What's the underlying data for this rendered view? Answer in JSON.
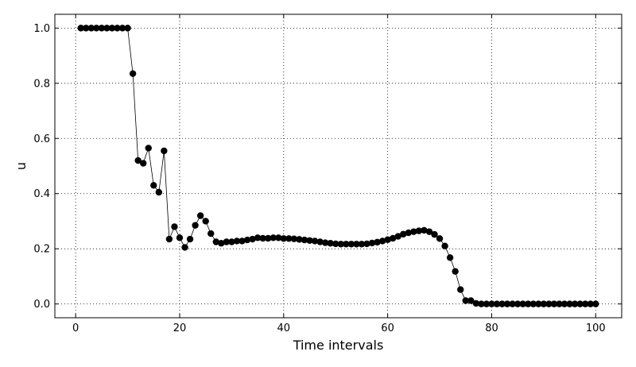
{
  "chart_data": {
    "type": "line",
    "title": "",
    "xlabel": "Time intervals",
    "ylabel": "u",
    "xlim": [
      -4,
      105
    ],
    "ylim": [
      -0.05,
      1.05
    ],
    "xticks": [
      0,
      20,
      40,
      60,
      80,
      100
    ],
    "yticks": [
      0.0,
      0.2,
      0.4,
      0.6,
      0.8,
      1.0
    ],
    "xtick_labels": [
      "0",
      "20",
      "40",
      "60",
      "80",
      "100"
    ],
    "ytick_labels": [
      "0.0",
      "0.2",
      "0.4",
      "0.6",
      "0.8",
      "1.0"
    ],
    "grid": true,
    "marker": "circle",
    "color": "#000000",
    "series": [
      {
        "x": [
          1,
          2,
          3,
          4,
          5,
          6,
          7,
          8,
          9,
          10,
          11,
          12,
          13,
          14,
          15,
          16,
          17,
          18,
          19,
          20,
          21,
          22,
          23,
          24,
          25,
          26,
          27,
          28,
          29,
          30,
          31,
          32,
          33,
          34,
          35,
          36,
          37,
          38,
          39,
          40,
          41,
          42,
          43,
          44,
          45,
          46,
          47,
          48,
          49,
          50,
          51,
          52,
          53,
          54,
          55,
          56,
          57,
          58,
          59,
          60,
          61,
          62,
          63,
          64,
          65,
          66,
          67,
          68,
          69,
          70,
          71,
          72,
          73,
          74,
          75,
          76,
          77,
          78,
          79,
          80,
          81,
          82,
          83,
          84,
          85,
          86,
          87,
          88,
          89,
          90,
          91,
          92,
          93,
          94,
          95,
          96,
          97,
          98,
          99,
          100
        ],
        "y": [
          1.0,
          1.0,
          1.0,
          1.0,
          1.0,
          1.0,
          1.0,
          1.0,
          1.0,
          1.0,
          0.835,
          0.52,
          0.51,
          0.565,
          0.43,
          0.405,
          0.555,
          0.235,
          0.28,
          0.24,
          0.205,
          0.235,
          0.285,
          0.32,
          0.3,
          0.255,
          0.225,
          0.22,
          0.225,
          0.225,
          0.228,
          0.228,
          0.232,
          0.235,
          0.24,
          0.238,
          0.238,
          0.24,
          0.24,
          0.237,
          0.237,
          0.236,
          0.234,
          0.232,
          0.23,
          0.228,
          0.225,
          0.222,
          0.22,
          0.218,
          0.217,
          0.217,
          0.217,
          0.217,
          0.217,
          0.218,
          0.221,
          0.224,
          0.228,
          0.233,
          0.238,
          0.245,
          0.253,
          0.258,
          0.262,
          0.265,
          0.267,
          0.262,
          0.252,
          0.237,
          0.21,
          0.168,
          0.118,
          0.052,
          0.012,
          0.012,
          0.002,
          0.0,
          0.0,
          0.0,
          0.0,
          0.0,
          0.0,
          0.0,
          0.0,
          0.0,
          0.0,
          0.0,
          0.0,
          0.0,
          0.0,
          0.0,
          0.0,
          0.0,
          0.0,
          0.0,
          0.0,
          0.0,
          0.0,
          0.0
        ]
      }
    ]
  }
}
